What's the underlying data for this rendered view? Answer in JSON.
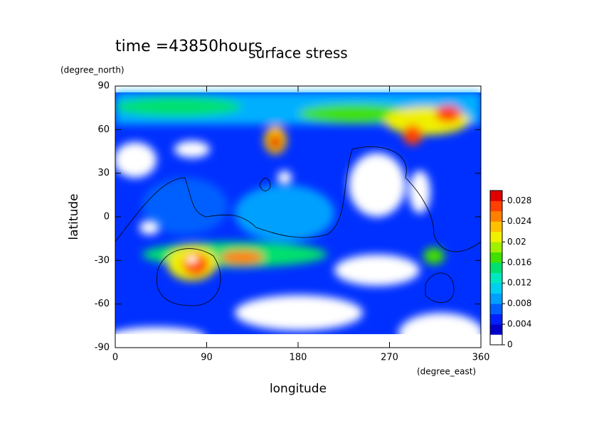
{
  "chart_data": {
    "type": "contour",
    "title": "surface stress",
    "subtitle": "time =43850hours",
    "x_label": "longitude",
    "x_unit": "(degree_east)",
    "y_label": "latitude",
    "y_unit": "(degree_north)",
    "xlim": [
      0,
      360
    ],
    "xticks": [
      0,
      90,
      180,
      270,
      360
    ],
    "ylim": [
      -90,
      90
    ],
    "yticks": [
      -90,
      -60,
      -30,
      0,
      30,
      60,
      90
    ],
    "colorbar": {
      "clim": [
        0,
        0.03
      ],
      "ticks": [
        0,
        0.004,
        0.008,
        0.012,
        0.016,
        0.02,
        0.024,
        0.028
      ],
      "colors": [
        "#ffffff",
        "#0000c8",
        "#0020ff",
        "#0060ff",
        "#00a0ff",
        "#00d0f0",
        "#00e8c0",
        "#00e070",
        "#40e000",
        "#a0f000",
        "#f0f000",
        "#ffc000",
        "#ff8000",
        "#ff4000",
        "#e00000"
      ]
    }
  }
}
